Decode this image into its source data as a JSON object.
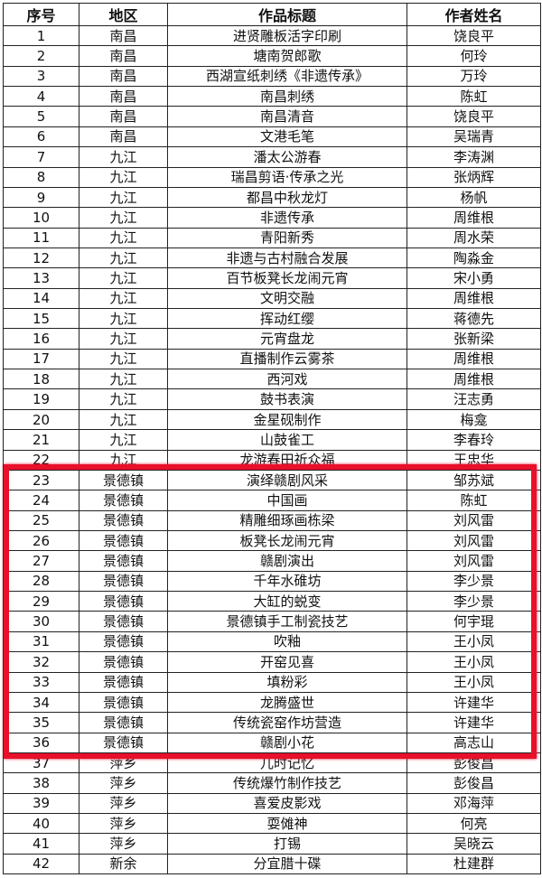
{
  "headers": [
    "序号",
    "地区",
    "作品标题",
    "作者姓名"
  ],
  "highlight_color": "#e8102a",
  "highlighted_rows": [
    23,
    36
  ],
  "rows": [
    [
      "1",
      "南昌",
      "进贤雕板活字印刷",
      "饶良平"
    ],
    [
      "2",
      "南昌",
      "塘南贺郎歌",
      "何玲"
    ],
    [
      "3",
      "南昌",
      "西湖宣纸刺绣《非遗传承》",
      "万玲"
    ],
    [
      "4",
      "南昌",
      "南昌刺绣",
      "陈虹"
    ],
    [
      "5",
      "南昌",
      "南昌清音",
      "饶良平"
    ],
    [
      "6",
      "南昌",
      "文港毛笔",
      "吴瑞青"
    ],
    [
      "7",
      "九江",
      "潘太公游春",
      "李涛渊"
    ],
    [
      "8",
      "九江",
      "瑞昌剪语·传承之光",
      "张炳辉"
    ],
    [
      "9",
      "九江",
      "都昌中秋龙灯",
      "杨帆"
    ],
    [
      "10",
      "九江",
      "非遗传承",
      "周维根"
    ],
    [
      "11",
      "九江",
      "青阳新秀",
      "周水荣"
    ],
    [
      "12",
      "九江",
      "非遗与古村融合发展",
      "陶淼金"
    ],
    [
      "13",
      "九江",
      "百节板凳长龙闹元宵",
      "宋小勇"
    ],
    [
      "14",
      "九江",
      "文明交融",
      "周维根"
    ],
    [
      "15",
      "九江",
      "挥动红缨",
      "蒋德先"
    ],
    [
      "16",
      "九江",
      "元宵盘龙",
      "张新梁"
    ],
    [
      "17",
      "九江",
      "直播制作云雾茶",
      "周维根"
    ],
    [
      "18",
      "九江",
      "西河戏",
      "周维根"
    ],
    [
      "19",
      "九江",
      "鼓书表演",
      "汪志勇"
    ],
    [
      "20",
      "九江",
      "金星砚制作",
      "梅龛"
    ],
    [
      "21",
      "九江",
      "山鼓雀工",
      "李春玲"
    ],
    [
      "22",
      "九江",
      "龙游春田祈众福",
      "王忠华"
    ],
    [
      "23",
      "景德镇",
      "演绎赣剧风采",
      "邹苏斌"
    ],
    [
      "24",
      "景德镇",
      "中国画",
      "陈虹"
    ],
    [
      "25",
      "景德镇",
      "精雕细琢画栋梁",
      "刘风雷"
    ],
    [
      "26",
      "景德镇",
      "板凳长龙闹元宵",
      "刘风雷"
    ],
    [
      "27",
      "景德镇",
      "赣剧演出",
      "刘风雷"
    ],
    [
      "28",
      "景德镇",
      "千年水碓坊",
      "李少景"
    ],
    [
      "29",
      "景德镇",
      "大缸的蜕变",
      "李少景"
    ],
    [
      "30",
      "景德镇",
      "景德镇手工制瓷技艺",
      "何宇琨"
    ],
    [
      "31",
      "景德镇",
      "吹釉",
      "王小凤"
    ],
    [
      "32",
      "景德镇",
      "开窑见喜",
      "王小凤"
    ],
    [
      "33",
      "景德镇",
      "填粉彩",
      "王小凤"
    ],
    [
      "34",
      "景德镇",
      "龙腾盛世",
      "许建华"
    ],
    [
      "35",
      "景德镇",
      "传统瓷窑作坊营造",
      "许建华"
    ],
    [
      "36",
      "景德镇",
      "赣剧小花",
      "高志山"
    ],
    [
      "37",
      "萍乡",
      "儿时记忆",
      "彭俊昌"
    ],
    [
      "38",
      "萍乡",
      "传统爆竹制作技艺",
      "彭俊昌"
    ],
    [
      "39",
      "萍乡",
      "喜爱皮影戏",
      "邓海萍"
    ],
    [
      "40",
      "萍乡",
      "耍傩神",
      "何亮"
    ],
    [
      "41",
      "萍乡",
      "打锡",
      "吴晓云"
    ],
    [
      "42",
      "新余",
      "分宜腊十碟",
      "杜建群"
    ]
  ]
}
